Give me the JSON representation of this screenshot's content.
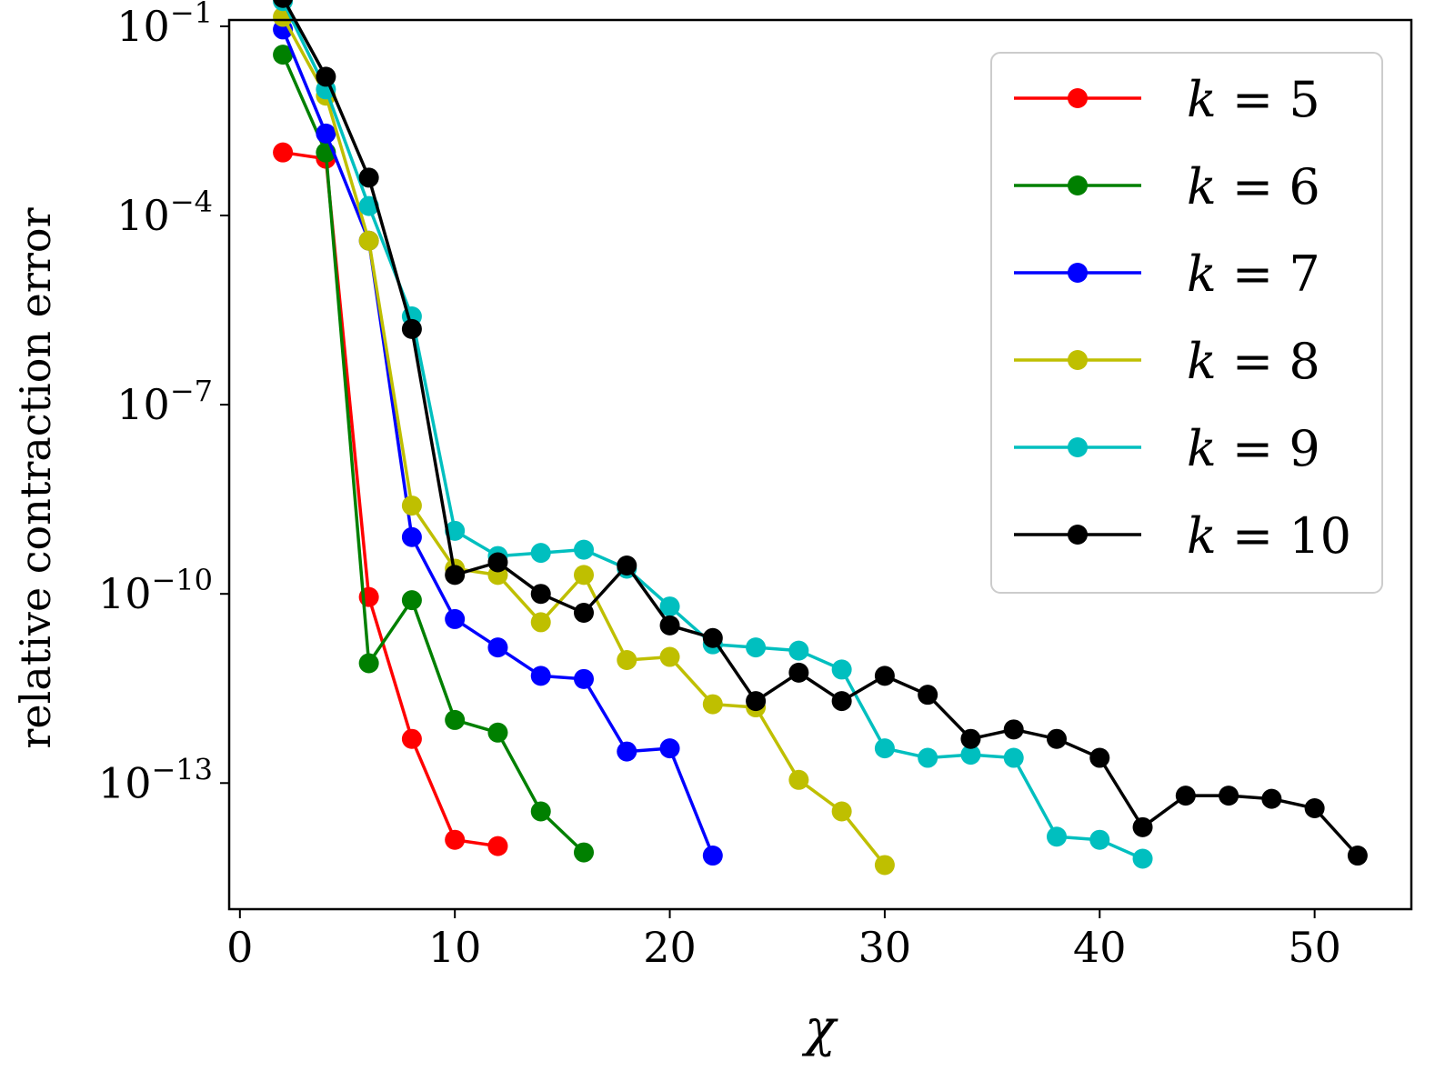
{
  "chart_data": {
    "type": "line",
    "xlabel": "χ",
    "ylabel": "relative contraction error",
    "yscale": "log",
    "xlim": [
      -0.5,
      54.5
    ],
    "ylim_exp": [
      -15.0,
      -0.9
    ],
    "x_ticks": [
      0,
      10,
      20,
      30,
      40,
      50
    ],
    "y_ticks": [
      {
        "exp": -1,
        "base": "10",
        "sup": "−1"
      },
      {
        "exp": -4,
        "base": "10",
        "sup": "−4"
      },
      {
        "exp": -7,
        "base": "10",
        "sup": "−7"
      },
      {
        "exp": -10,
        "base": "10",
        "sup": "−10"
      },
      {
        "exp": -13,
        "base": "10",
        "sup": "−13"
      }
    ],
    "legend_position": "top-right",
    "series": [
      {
        "name": "k = 5",
        "k_label": "k",
        "k_value": "5",
        "color": "#ff0000",
        "x": [
          2,
          4,
          6,
          8,
          10,
          12
        ],
        "log10y": [
          -3.0,
          -3.1,
          -10.05,
          -12.3,
          -13.9,
          -14.0
        ]
      },
      {
        "name": "k = 6",
        "k_label": "k",
        "k_value": "6",
        "color": "#008000",
        "x": [
          2,
          4,
          6,
          8,
          10,
          12,
          14,
          16
        ],
        "log10y": [
          -1.45,
          -3.0,
          -11.1,
          -10.1,
          -12.0,
          -12.2,
          -13.45,
          -14.1
        ]
      },
      {
        "name": "k = 7",
        "k_label": "k",
        "k_value": "7",
        "color": "#0000ff",
        "x": [
          2,
          4,
          6,
          8,
          10,
          12,
          14,
          16,
          18,
          20,
          22
        ],
        "log10y": [
          -1.05,
          -2.7,
          -4.4,
          -9.1,
          -10.4,
          -10.85,
          -11.3,
          -11.35,
          -12.5,
          -12.45,
          -14.15
        ]
      },
      {
        "name": "k = 8",
        "k_label": "k",
        "k_value": "8",
        "color": "#bfbf00",
        "x": [
          2,
          4,
          6,
          8,
          10,
          12,
          14,
          16,
          18,
          20,
          22,
          24,
          26,
          28,
          30
        ],
        "log10y": [
          -0.85,
          -2.1,
          -4.4,
          -8.6,
          -9.6,
          -9.7,
          -10.45,
          -9.7,
          -11.05,
          -11.0,
          -11.75,
          -11.8,
          -12.95,
          -13.45,
          -14.3
        ]
      },
      {
        "name": "k = 9",
        "k_label": "k",
        "k_value": "9",
        "color": "#00bfbf",
        "x": [
          2,
          4,
          6,
          8,
          10,
          12,
          14,
          16,
          18,
          20,
          22,
          24,
          26,
          28,
          30,
          32,
          34,
          36,
          38,
          40,
          42
        ],
        "log10y": [
          -0.6,
          -2.0,
          -3.85,
          -5.6,
          -9.0,
          -9.4,
          -9.35,
          -9.3,
          -9.6,
          -10.2,
          -10.8,
          -10.85,
          -10.9,
          -11.2,
          -12.45,
          -12.6,
          -12.55,
          -12.6,
          -13.85,
          -13.9,
          -14.2
        ]
      },
      {
        "name": "k = 10",
        "k_label": "k",
        "k_value": "10",
        "color": "#000000",
        "x": [
          2,
          4,
          6,
          8,
          10,
          12,
          14,
          16,
          18,
          20,
          22,
          24,
          26,
          28,
          30,
          32,
          34,
          36,
          38,
          40,
          42,
          44,
          46,
          48,
          50,
          52
        ],
        "log10y": [
          -0.55,
          -1.8,
          -3.4,
          -5.8,
          -9.7,
          -9.5,
          -10.0,
          -10.3,
          -9.55,
          -10.5,
          -10.7,
          -11.7,
          -11.25,
          -11.7,
          -11.3,
          -11.6,
          -12.3,
          -12.15,
          -12.3,
          -12.6,
          -13.7,
          -13.2,
          -13.2,
          -13.25,
          -13.4,
          -14.15
        ]
      }
    ]
  }
}
